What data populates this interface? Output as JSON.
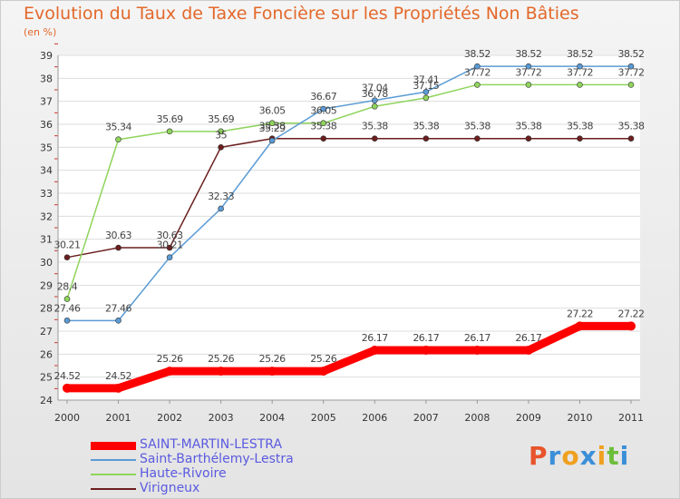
{
  "header": {
    "title": "Evolution du Taux de Taxe Foncière sur les Propriétés Non Bâties",
    "unit": "(en %)"
  },
  "brand": {
    "letters": [
      "P",
      "r",
      "o",
      "x",
      "i",
      "t",
      "i"
    ],
    "colors": [
      "#e8542b",
      "#3b8fd8",
      "#f0a020",
      "#3b8fd8",
      "#f0a020",
      "#6cbe3a",
      "#3b8fd8"
    ]
  },
  "chart_data": {
    "type": "line",
    "x": [
      "2000",
      "2001",
      "2002",
      "2003",
      "2004",
      "2005",
      "2006",
      "2007",
      "2008",
      "2009",
      "2010",
      "2011"
    ],
    "ylim": [
      24,
      39
    ],
    "yticks": [
      "24",
      "25",
      "26",
      "27",
      "28",
      "29",
      "30",
      "31",
      "32",
      "33",
      "34",
      "35",
      "36",
      "37",
      "38",
      "39"
    ],
    "grid": "horizontal",
    "legend_position": "bottom-left",
    "series": [
      {
        "name": "SAINT-MARTIN-LESTRA",
        "color": "#ff0000",
        "values": [
          24.52,
          24.52,
          25.26,
          25.26,
          25.26,
          25.26,
          26.17,
          26.17,
          26.17,
          26.17,
          27.22,
          27.22
        ],
        "labels": [
          "24.52",
          "24.52",
          "25.26",
          "25.26",
          "25.26",
          "25.26",
          "26.17",
          "26.17",
          "26.17",
          "26.17",
          "27.22",
          "27.22"
        ]
      },
      {
        "name": "Saint-Barthélemy-Lestra",
        "color": "#5b9bd5",
        "values": [
          27.46,
          27.46,
          30.21,
          32.33,
          35.29,
          36.67,
          37.04,
          37.41,
          38.52,
          38.52,
          38.52,
          38.52
        ],
        "labels": [
          "27.46",
          "27.46",
          "30.21",
          "32.33",
          "35.29",
          "36.67",
          "37.04",
          "37.41",
          "38.52",
          "38.52",
          "38.52",
          "38.52"
        ]
      },
      {
        "name": "Haute-Rivoire",
        "color": "#8fd45c",
        "values": [
          28.4,
          35.34,
          35.69,
          35.69,
          36.05,
          36.05,
          36.78,
          37.15,
          37.72,
          37.72,
          37.72,
          37.72
        ],
        "labels": [
          "28.4",
          "35.34",
          "35.69",
          "35.69",
          "36.05",
          "36.05",
          "36.78",
          "37.15",
          "37.72",
          "37.72",
          "37.72",
          "37.72"
        ]
      },
      {
        "name": "Virigneux",
        "color": "#6b1e1e",
        "values": [
          30.21,
          30.63,
          30.63,
          35,
          35.38,
          35.38,
          35.38,
          35.38,
          35.38,
          35.38,
          35.38,
          35.38
        ],
        "labels": [
          "30.21",
          "30.63",
          "30.63",
          "35",
          "35.38",
          "35.38",
          "35.38",
          "35.38",
          "35.38",
          "35.38",
          "35.38",
          "35.38"
        ]
      }
    ]
  }
}
